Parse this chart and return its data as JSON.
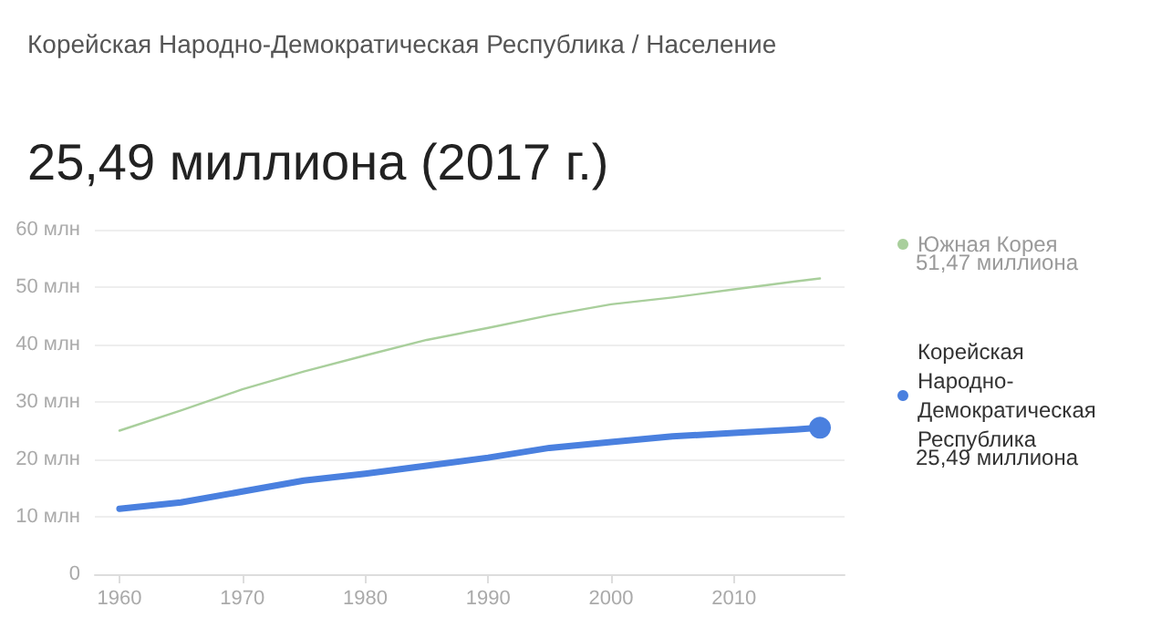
{
  "chart_data": {
    "type": "line",
    "subtitle": "Корейская Народно-Демократическая Республика / Население",
    "title": "25,49 миллиона (2017 г.)",
    "x": [
      1960,
      1965,
      1970,
      1975,
      1980,
      1985,
      1990,
      1995,
      2000,
      2005,
      2010,
      2015,
      2017
    ],
    "series": [
      {
        "name": "Южная Корея",
        "color": "#a9cf9c",
        "values": [
          25.0,
          28.5,
          32.2,
          35.3,
          38.1,
          40.8,
          42.9,
          45.1,
          47.0,
          48.2,
          49.6,
          51.0,
          51.5
        ]
      },
      {
        "name": "Корейская Народно-Демократическая Республика",
        "color": "#4a80df",
        "values": [
          11.4,
          12.5,
          14.4,
          16.3,
          17.5,
          18.9,
          20.3,
          22.0,
          23.0,
          24.0,
          24.6,
          25.2,
          25.5
        ]
      }
    ],
    "annotations": [
      "51,47 миллиона",
      "25,49 миллиона"
    ],
    "xlim": [
      1958,
      2019
    ],
    "xticks": [
      1960,
      1970,
      1980,
      1990,
      2000,
      2010
    ],
    "ylim": [
      0,
      60
    ],
    "yticks": [
      {
        "value": 0,
        "label": "0"
      },
      {
        "value": 10,
        "label": "10 млн"
      },
      {
        "value": 20,
        "label": "20 млн"
      },
      {
        "value": 30,
        "label": "30 млн"
      },
      {
        "value": 40,
        "label": "40 млн"
      },
      {
        "value": 50,
        "label": "50 млн"
      },
      {
        "value": 60,
        "label": "60 млн"
      }
    ],
    "grid": "y",
    "legend": "right"
  }
}
